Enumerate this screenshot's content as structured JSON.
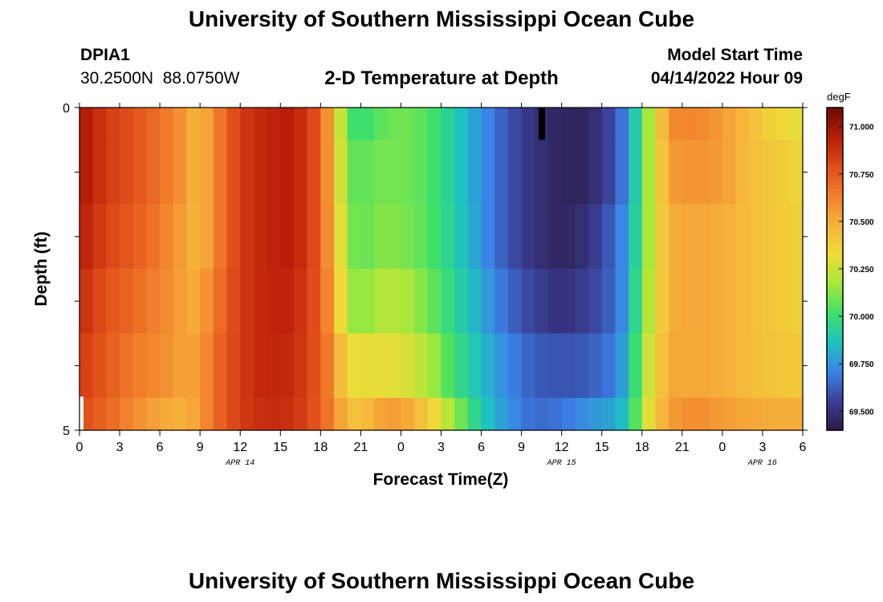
{
  "header": {
    "title": "University of Southern Mississippi Ocean Cube",
    "station_id": "DPIA1",
    "location": "30.2500N  88.0750W",
    "subtitle": "2-D Temperature at Depth",
    "model_label": "Model Start Time",
    "model_time": "04/14/2022 Hour 09"
  },
  "footer": {
    "title": "University of Southern Mississippi Ocean Cube"
  },
  "colors": {
    "scale": [
      "#2d1846",
      "#3a3f96",
      "#3b82e8",
      "#1ec2c0",
      "#3ee06a",
      "#a6e83a",
      "#eedc38",
      "#f6b43c",
      "#f27e2c",
      "#e04e1a",
      "#b81c08",
      "#6e0c04"
    ]
  },
  "chart_data": {
    "type": "heatmap",
    "title": "2-D Temperature at Depth",
    "xlabel": "Forecast Time(Z)",
    "ylabel": "Depth (ft)",
    "x_tick_labels": [
      "0",
      "3",
      "6",
      "9",
      "12",
      "15",
      "18",
      "21",
      "0",
      "3",
      "6",
      "9",
      "12",
      "15",
      "18",
      "21",
      "0",
      "3",
      "6"
    ],
    "x_hours": [
      0,
      3,
      6,
      9,
      12,
      15,
      18,
      21,
      24,
      27,
      30,
      33,
      36,
      39,
      42,
      45,
      48,
      51,
      54
    ],
    "x_range": [
      0,
      54
    ],
    "date_labels": [
      {
        "label": "APR 14",
        "hour": 12
      },
      {
        "label": "APR 15",
        "hour": 36
      },
      {
        "label": "APR 16",
        "hour": 51
      }
    ],
    "y_tick_labels": [
      "0",
      "5"
    ],
    "y_range": [
      0,
      5
    ],
    "colorbar": {
      "unit": "degF",
      "range": [
        69.4,
        71.1
      ],
      "tick_values": [
        71.0,
        70.75,
        70.5,
        70.25,
        70.0,
        69.75,
        69.5
      ],
      "tick_labels": [
        "71.000",
        "70.750",
        "70.500",
        "70.250",
        "70.000",
        "69.750",
        "69.500"
      ]
    },
    "depth_rows": [
      "0-0.5 ft",
      "0.5-1.5 ft",
      "1.5-2.5 ft",
      "2.5-3.5 ft",
      "3.5-4.5 ft",
      "4.5-5 ft"
    ],
    "temperature_profile": {
      "hours": [
        0,
        2,
        4,
        6,
        8,
        9,
        10,
        12,
        14,
        16,
        18,
        19,
        20,
        21,
        22,
        24,
        26,
        28,
        30,
        32,
        34,
        36,
        38,
        40,
        41,
        42,
        43,
        44,
        46,
        48,
        50,
        52,
        54
      ],
      "rows": [
        [
          70.98,
          70.85,
          70.78,
          70.68,
          70.55,
          70.45,
          70.6,
          70.85,
          70.92,
          70.95,
          70.75,
          70.42,
          70.05,
          69.98,
          70.05,
          70.1,
          70.05,
          69.9,
          69.75,
          69.6,
          69.5,
          69.45,
          69.45,
          69.6,
          69.75,
          70.05,
          70.3,
          70.6,
          70.62,
          70.55,
          70.45,
          70.35,
          70.3
        ],
        [
          70.98,
          70.85,
          70.78,
          70.68,
          70.55,
          70.45,
          70.6,
          70.85,
          70.92,
          70.95,
          70.75,
          70.42,
          70.1,
          70.05,
          70.1,
          70.1,
          70.05,
          69.9,
          69.75,
          69.6,
          69.5,
          69.45,
          69.45,
          69.6,
          69.75,
          70.05,
          70.3,
          70.55,
          70.58,
          70.55,
          70.45,
          70.4,
          70.35
        ],
        [
          70.95,
          70.82,
          70.75,
          70.65,
          70.52,
          70.45,
          70.6,
          70.85,
          70.92,
          70.95,
          70.75,
          70.45,
          70.15,
          70.05,
          70.12,
          70.12,
          70.05,
          69.92,
          69.75,
          69.6,
          69.5,
          69.45,
          69.5,
          69.65,
          69.8,
          70.05,
          70.3,
          70.5,
          70.52,
          70.5,
          70.45,
          70.4,
          70.38
        ],
        [
          70.9,
          70.78,
          70.7,
          70.62,
          70.52,
          70.5,
          70.65,
          70.85,
          70.92,
          70.92,
          70.75,
          70.48,
          70.2,
          70.1,
          70.2,
          70.2,
          70.1,
          69.95,
          69.8,
          69.65,
          69.55,
          69.5,
          69.55,
          69.65,
          69.8,
          70.1,
          70.3,
          70.5,
          70.52,
          70.5,
          70.45,
          70.4,
          70.38
        ],
        [
          70.85,
          70.75,
          70.65,
          70.6,
          70.52,
          70.55,
          70.68,
          70.85,
          70.92,
          70.9,
          70.75,
          70.55,
          70.35,
          70.3,
          70.32,
          70.3,
          70.2,
          70.0,
          69.85,
          69.72,
          69.62,
          69.6,
          69.62,
          69.7,
          69.85,
          70.15,
          70.35,
          70.52,
          70.52,
          70.5,
          70.45,
          70.42,
          70.4
        ],
        [
          70.8,
          70.72,
          70.6,
          70.52,
          70.48,
          70.55,
          70.68,
          70.85,
          70.9,
          70.88,
          70.75,
          70.6,
          70.45,
          70.42,
          70.52,
          70.55,
          70.4,
          70.15,
          69.9,
          69.75,
          69.65,
          69.68,
          69.75,
          69.8,
          69.9,
          70.2,
          70.4,
          70.55,
          70.6,
          70.55,
          70.52,
          70.5,
          70.5
        ]
      ]
    }
  }
}
